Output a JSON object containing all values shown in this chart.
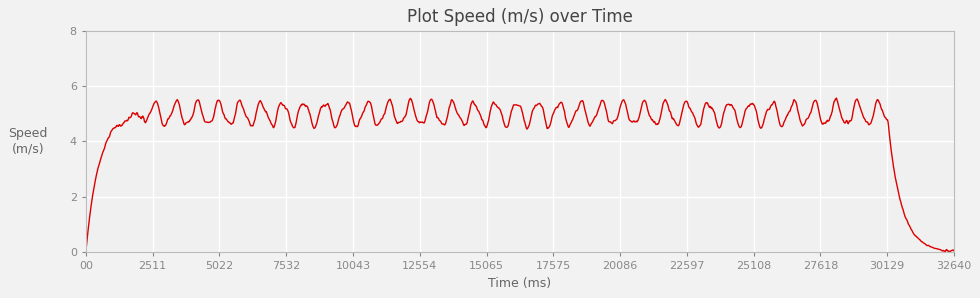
{
  "title": "Plot Speed (m/s) over Time",
  "xlabel": "Time (ms)",
  "ylabel": "Speed\n(m/s)",
  "xlim": [
    0,
    32640
  ],
  "ylim": [
    0,
    8
  ],
  "yticks": [
    0,
    2,
    4,
    6,
    8
  ],
  "xtick_values": [
    0,
    2511,
    5022,
    7532,
    10043,
    12554,
    15065,
    17575,
    20086,
    22597,
    25108,
    27618,
    30129,
    32640
  ],
  "xtick_labels": [
    "00",
    "2511",
    "5022",
    "7532",
    "10043",
    "12554",
    "15065",
    "17575",
    "20086",
    "22597",
    "25108",
    "27618",
    "30129",
    "32640"
  ],
  "line_color": "#dd0000",
  "line_width": 1.0,
  "bg_color": "#f2f2f2",
  "plot_bg_color": "#f0f0f0",
  "grid_color": "#ffffff",
  "title_fontsize": 12,
  "label_fontsize": 9,
  "tick_fontsize": 8,
  "run_duration_ms": 30129,
  "total_duration_ms": 32640,
  "cruise_speed_mean": 5.0,
  "cruise_speed_amp": 0.42,
  "osc_period_ms": 800,
  "ramp_up_end_ms": 2200,
  "decel_duration_ms": 2000
}
